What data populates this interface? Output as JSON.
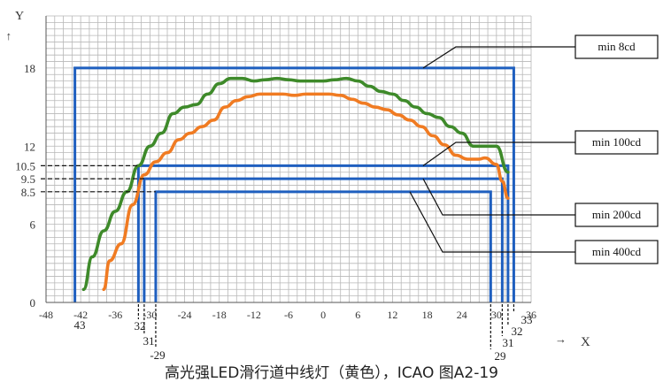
{
  "axes": {
    "y_label": "Y",
    "x_label": "X",
    "x_ticks": [
      "-48",
      "-42",
      "-36",
      "-30",
      "-24",
      "-18",
      "-12",
      "-6",
      "0",
      "6",
      "12",
      "18",
      "24",
      "30",
      "36"
    ],
    "y_ticks": [
      "0",
      "6",
      "12",
      "18"
    ],
    "y_extra_ticks": [
      "10.5",
      "9.5",
      "8.5"
    ],
    "x_range": [
      -48,
      36
    ],
    "y_range": [
      0,
      22
    ]
  },
  "callouts": [
    {
      "label": "min 8cd"
    },
    {
      "label": "min 100cd"
    },
    {
      "label": "min 200cd"
    },
    {
      "label": "min 400cd"
    }
  ],
  "x_markers_left": [
    "43",
    "32",
    "31",
    "-29"
  ],
  "x_markers_right": [
    "29",
    "31",
    "32",
    "33"
  ],
  "caption": "高光强LED滑行道中线灯（黄色），ICAO 图A2-19",
  "colors": {
    "grid": "#b8b8b8",
    "boxes": "#1f5fbf",
    "green": "#3e8a2a",
    "orange": "#f07b22"
  },
  "chart_data": {
    "type": "line",
    "xlim": [
      -48,
      36
    ],
    "ylim": [
      0,
      22
    ],
    "boxes": [
      {
        "x": [
          -43,
          33
        ],
        "y": [
          0,
          18
        ],
        "label": "min 8cd"
      },
      {
        "x": [
          -32,
          32
        ],
        "y": [
          0,
          10.5
        ],
        "label": "min 100cd"
      },
      {
        "x": [
          -31,
          31
        ],
        "y": [
          0,
          9.5
        ],
        "label": "min 200cd"
      },
      {
        "x": [
          -29,
          29
        ],
        "y": [
          0,
          8.5
        ],
        "label": "min 400cd"
      }
    ],
    "series": [
      {
        "x": [
          -41.5,
          -40,
          -38,
          -36,
          -34,
          -32,
          -30,
          -28,
          -26,
          -24,
          -22,
          -20,
          -18,
          -16,
          -14,
          -12,
          -10,
          -8,
          -6,
          -4,
          -2,
          0,
          2,
          4,
          6,
          8,
          10,
          12,
          14,
          16,
          18,
          20,
          22,
          24,
          26,
          28,
          30,
          32
        ],
        "y": [
          1,
          3.5,
          5.5,
          7,
          8.5,
          10.5,
          12,
          13,
          14.5,
          15,
          15.2,
          16,
          16.8,
          17.2,
          17.2,
          17.0,
          17.1,
          17.2,
          17.1,
          17.0,
          17.0,
          17.0,
          17.1,
          17.2,
          17.0,
          16.6,
          16.2,
          16.0,
          15.5,
          15.0,
          14.5,
          14.2,
          13.5,
          13.0,
          12.0,
          12.0,
          12.0,
          10.0
        ]
      },
      {
        "x": [
          -38,
          -37,
          -35,
          -33,
          -31,
          -29,
          -27,
          -25,
          -23,
          -21,
          -19,
          -17,
          -15,
          -13,
          -11,
          -9,
          -7,
          -5,
          -3,
          -1,
          1,
          3,
          5,
          7,
          9,
          11,
          13,
          15,
          17,
          19,
          21,
          23,
          25,
          27,
          28,
          30,
          31,
          32
        ],
        "y": [
          1,
          3.2,
          4.5,
          7.5,
          9.8,
          10.8,
          11.5,
          12.5,
          13.0,
          13.5,
          14.0,
          15.0,
          15.5,
          15.8,
          16.0,
          16.0,
          16.0,
          15.9,
          16.0,
          16.0,
          16.0,
          15.9,
          15.6,
          15.3,
          15.0,
          14.8,
          14.4,
          14.0,
          13.5,
          12.8,
          12.1,
          11.3,
          11.0,
          11.0,
          11.1,
          10.6,
          9.3,
          8.0
        ]
      }
    ]
  }
}
